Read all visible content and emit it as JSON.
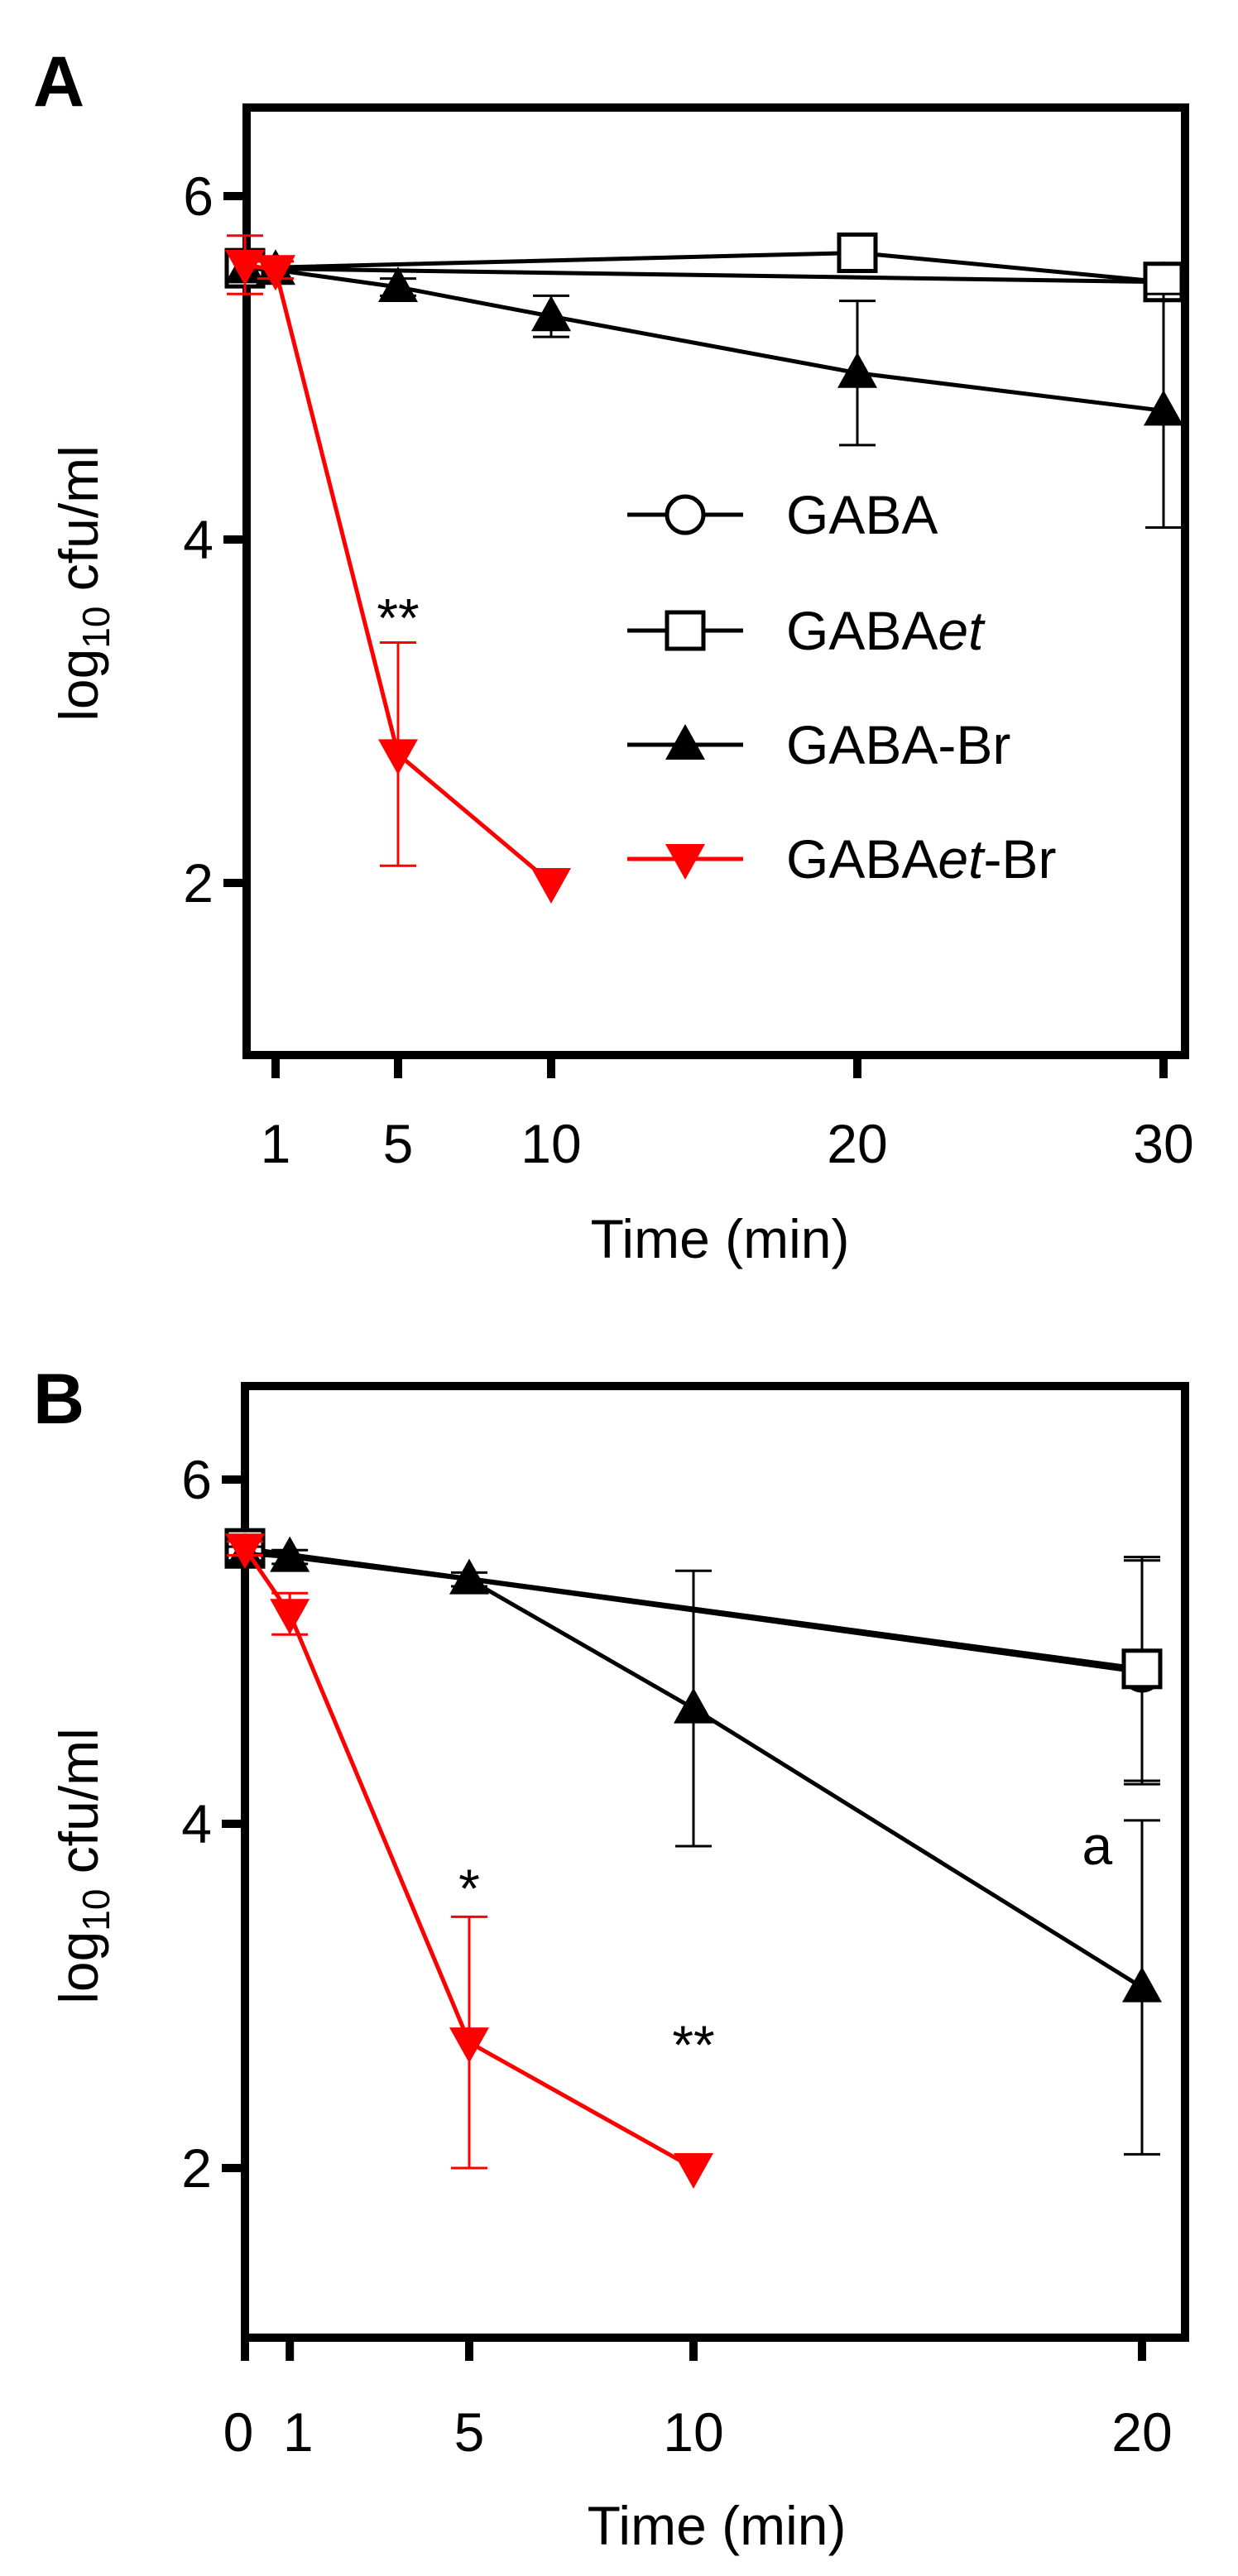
{
  "chart_data": [
    {
      "panel_label": "A",
      "type": "line",
      "ylabel_base": "log",
      "ylabel_sub": "10",
      "ylabel_rest": " cfu/ml",
      "xlabel": "Time (min)",
      "xlim": [
        0,
        30
      ],
      "ylim": [
        1,
        6.5
      ],
      "xticks": [
        1,
        5,
        10,
        20,
        30
      ],
      "yticks": [
        2,
        4,
        6
      ],
      "series": [
        {
          "name": "GABA",
          "name_plain": "GABA",
          "name_italic": "",
          "name_tail": "",
          "marker": "circle-open",
          "color": "#000000",
          "x": [
            0,
            30
          ],
          "y": [
            5.58,
            5.5
          ],
          "err": [
            0.05,
            0.05
          ]
        },
        {
          "name": "GABAet",
          "name_plain": "GABA",
          "name_italic": "et",
          "name_tail": "",
          "marker": "square-open",
          "color": "#000000",
          "x": [
            0,
            20,
            30
          ],
          "y": [
            5.58,
            5.67,
            5.5
          ],
          "err": [
            0.06,
            0.05,
            0.05
          ]
        },
        {
          "name": "GABA-Br",
          "name_plain": "GABA-Br",
          "name_italic": "",
          "name_tail": "",
          "marker": "triangle-up",
          "color": "#000000",
          "x": [
            0,
            1,
            5,
            10,
            20,
            30
          ],
          "y": [
            5.58,
            5.57,
            5.47,
            5.3,
            4.97,
            4.75
          ],
          "err": [
            0.08,
            0.05,
            0.05,
            0.12,
            0.42,
            0.68
          ]
        },
        {
          "name": "GABAet-Br",
          "name_plain": "GABA",
          "name_italic": "et",
          "name_tail": "-Br",
          "marker": "triangle-down",
          "color": "#ff0000",
          "x": [
            0,
            1,
            5,
            10
          ],
          "y": [
            5.6,
            5.57,
            2.75,
            2.0
          ],
          "err": [
            0.17,
            0.05,
            0.65,
            0.0
          ]
        }
      ],
      "annotations": [
        {
          "text": "**",
          "x": 5,
          "y": 3.55
        }
      ],
      "legend_position": "right-center"
    },
    {
      "panel_label": "B",
      "type": "line",
      "ylabel_base": "log",
      "ylabel_sub": "10",
      "ylabel_rest": " cfu/ml",
      "xlabel": "Time (min)",
      "xlim": [
        0,
        20.5
      ],
      "ylim": [
        1,
        6.5
      ],
      "xticks": [
        0,
        1,
        5,
        10,
        20
      ],
      "xtick_labels": [
        "0",
        "1",
        "5",
        "10",
        "20"
      ],
      "yticks": [
        2,
        4,
        6
      ],
      "series": [
        {
          "name": "GABA",
          "marker": "circle-open",
          "color": "#000000",
          "x": [
            0,
            20
          ],
          "y": [
            5.6,
            4.88
          ],
          "err": [
            0.04,
            0.65
          ]
        },
        {
          "name": "GABAet",
          "marker": "square-open",
          "color": "#000000",
          "x": [
            0,
            20
          ],
          "y": [
            5.6,
            4.9
          ],
          "err": [
            0.04,
            0.65
          ]
        },
        {
          "name": "GABA-Br",
          "marker": "triangle-up",
          "color": "#000000",
          "x": [
            0,
            1,
            5,
            10,
            20
          ],
          "y": [
            5.57,
            5.55,
            5.42,
            4.67,
            3.05
          ],
          "err": [
            0.04,
            0.04,
            0.04,
            0.8,
            0.97
          ]
        },
        {
          "name": "GABAet-Br",
          "marker": "triangle-down",
          "color": "#ff0000",
          "x": [
            0,
            1,
            5,
            10
          ],
          "y": [
            5.6,
            5.22,
            2.73,
            2.0
          ],
          "err": [
            0.04,
            0.12,
            0.73,
            0.0
          ]
        }
      ],
      "annotations": [
        {
          "text": "*",
          "x": 5,
          "y": 3.63
        },
        {
          "text": "**",
          "x": 10,
          "y": 2.72
        },
        {
          "text": "a",
          "x": 19.0,
          "y": 3.88
        }
      ]
    }
  ]
}
